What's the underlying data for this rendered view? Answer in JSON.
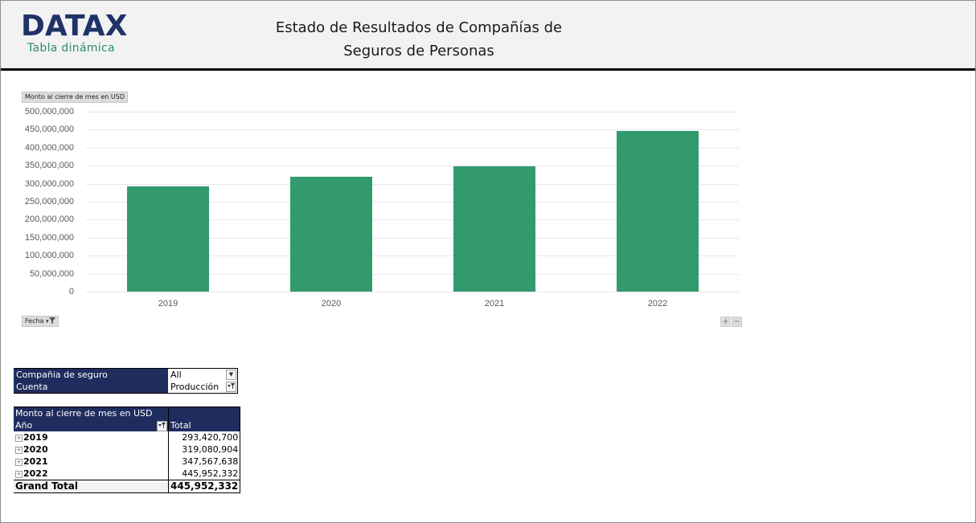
{
  "header": {
    "logo": "DATAX",
    "logo_subtitle": "Tabla dinámica",
    "title_line1": "Estado de Resultados de Compañías de",
    "title_line2": "Seguros de Personas"
  },
  "chart_controls": {
    "measure_button": "Monto al cierre de mes en USD",
    "axis_field_button": "Fecha",
    "axis_field_icon": "filter-dropdown-icon",
    "expand_button": "+",
    "collapse_button": "−"
  },
  "chart_data": {
    "type": "bar",
    "title": "",
    "xlabel": "",
    "ylabel": "Monto al cierre de mes en USD",
    "categories": [
      "2019",
      "2020",
      "2021",
      "2022"
    ],
    "values": [
      293420700,
      319080904,
      347567638,
      445952332
    ],
    "ylim": [
      0,
      500000000
    ],
    "yticks": [
      "0",
      "50,000,000",
      "100,000,000",
      "150,000,000",
      "200,000,000",
      "250,000,000",
      "300,000,000",
      "350,000,000",
      "400,000,000",
      "450,000,000",
      "500,000,000"
    ],
    "grid": true,
    "legend": "none",
    "bar_color": "#339a6e"
  },
  "filters": [
    {
      "label": "Compañia de seguro",
      "value": "All",
      "icon": "dropdown-arrow-icon"
    },
    {
      "label": "Cuenta",
      "value": "Producción",
      "icon": "filter-applied-icon"
    }
  ],
  "pivot": {
    "measure_header": "Monto al cierre de mes en USD",
    "row_header": "Año",
    "value_header": "Total",
    "rows": [
      {
        "label": "2019",
        "value": "293,420,700"
      },
      {
        "label": "2020",
        "value": "319,080,904"
      },
      {
        "label": "2021",
        "value": "347,567,638"
      },
      {
        "label": "2022",
        "value": "445,952,332"
      }
    ],
    "grand_total_label": "Grand Total",
    "grand_total_value": "445,952,332"
  },
  "colors": {
    "header_bg": "#f2f2f2",
    "brand_navy": "#1f3368",
    "brand_green": "#2e8f6a",
    "pivot_header_bg": "#1f2d5e",
    "bar": "#339a6e"
  }
}
